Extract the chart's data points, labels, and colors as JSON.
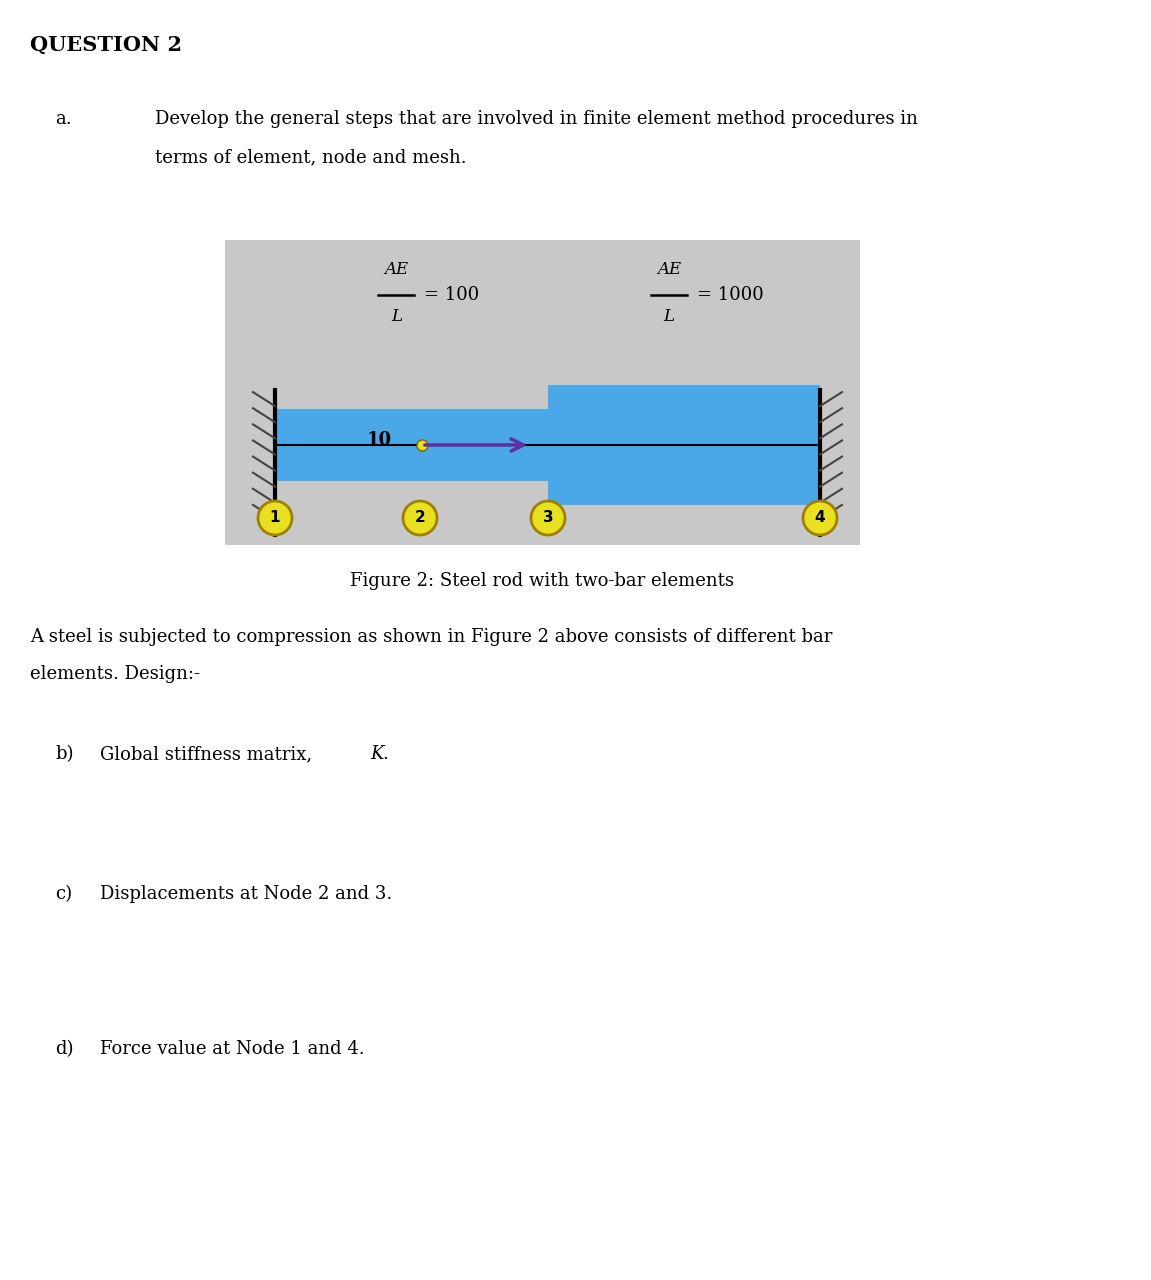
{
  "title": "QUESTION 2",
  "bg_color": "#ffffff",
  "diag_bg_color": "#c8c8c8",
  "bar_color": "#4aa8e8",
  "node_color": "#e8e020",
  "node_border": "#b8a000",
  "arrow_color": "#6030a0",
  "fig_caption": "Figure 2: Steel rod with two-bar elements",
  "text_a_label": "a.",
  "text_a": "Develop the general steps that are involved in finite element method procedures in terms of element, node and mesh.",
  "text_intro": "A steel is subjected to compression as shown in Figure 2 above consists of different bar elements. Design:-",
  "text_b_label": "b)",
  "text_b": "Global stiffness matrix, ",
  "text_b_italic": "K",
  "text_b_end": ".",
  "text_c_label": "c)",
  "text_c": "Displacements at Node 2 and 3.",
  "text_d_label": "d)",
  "text_d": "Force value at Node 1 and 4.",
  "force_label": "10",
  "nodes": [
    "1",
    "2",
    "3",
    "4"
  ]
}
